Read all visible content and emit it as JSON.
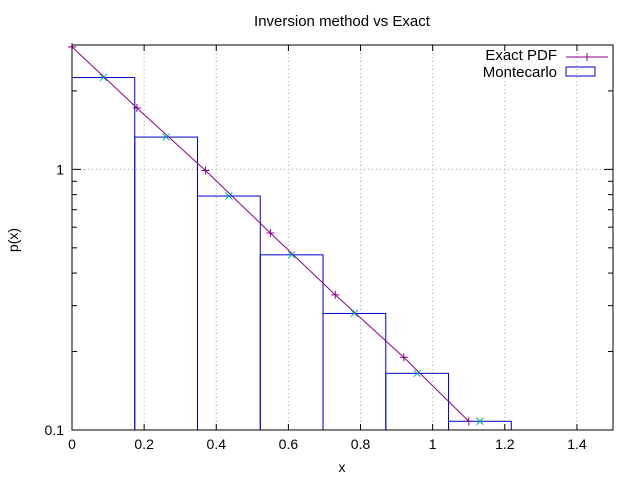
{
  "chart_data": {
    "type": "line",
    "title": "Inversion method vs Exact",
    "xlabel": "x",
    "ylabel": "p(x)",
    "xlim": [
      0,
      1.5
    ],
    "ylim": [
      0.1,
      3.0
    ],
    "yscale": "log",
    "grid": true,
    "legend_position": "top-right",
    "x_ticks": [
      0,
      0.2,
      0.4,
      0.6,
      0.8,
      1,
      1.2,
      1.4
    ],
    "x_tick_labels": [
      "0",
      "0.2",
      "0.4",
      "0.6",
      "0.8",
      "1",
      "1.2",
      "1.4"
    ],
    "y_ticks": [
      0.1,
      1
    ],
    "y_tick_labels": [
      "0.1",
      "1"
    ],
    "series": [
      {
        "name": "Exact PDF",
        "style": "linespoints",
        "color": "#8b008b",
        "marker": "plus",
        "x": [
          0,
          0.18,
          0.37,
          0.55,
          0.73,
          0.92,
          1.1
        ],
        "y": [
          2.95,
          1.72,
          0.99,
          0.57,
          0.33,
          0.19,
          0.108
        ]
      },
      {
        "name": "Montecarlo",
        "style": "boxes",
        "color": "#0000cd",
        "bins": [
          {
            "x0": 0.0,
            "x1": 0.174,
            "y": 2.25
          },
          {
            "x0": 0.174,
            "x1": 0.348,
            "y": 1.33
          },
          {
            "x0": 0.348,
            "x1": 0.522,
            "y": 0.79
          },
          {
            "x0": 0.522,
            "x1": 0.696,
            "y": 0.47
          },
          {
            "x0": 0.696,
            "x1": 0.87,
            "y": 0.28
          },
          {
            "x0": 0.87,
            "x1": 1.044,
            "y": 0.165
          },
          {
            "x0": 1.044,
            "x1": 1.218,
            "y": 0.108
          }
        ],
        "centers": [
          {
            "x": 0.087,
            "y": 2.25,
            "color": "#00b0a0",
            "marker": "cross"
          },
          {
            "x": 0.261,
            "y": 1.33,
            "color": "#00b0a0",
            "marker": "cross"
          },
          {
            "x": 0.435,
            "y": 0.79,
            "color": "#00b0a0",
            "marker": "cross"
          },
          {
            "x": 0.609,
            "y": 0.47,
            "color": "#00b0a0",
            "marker": "cross"
          },
          {
            "x": 0.783,
            "y": 0.28,
            "color": "#00b0a0",
            "marker": "cross"
          },
          {
            "x": 0.957,
            "y": 0.165,
            "color": "#00b0a0",
            "marker": "cross"
          },
          {
            "x": 1.131,
            "y": 0.108,
            "color": "#00b0a0",
            "marker": "cross"
          }
        ]
      }
    ]
  }
}
